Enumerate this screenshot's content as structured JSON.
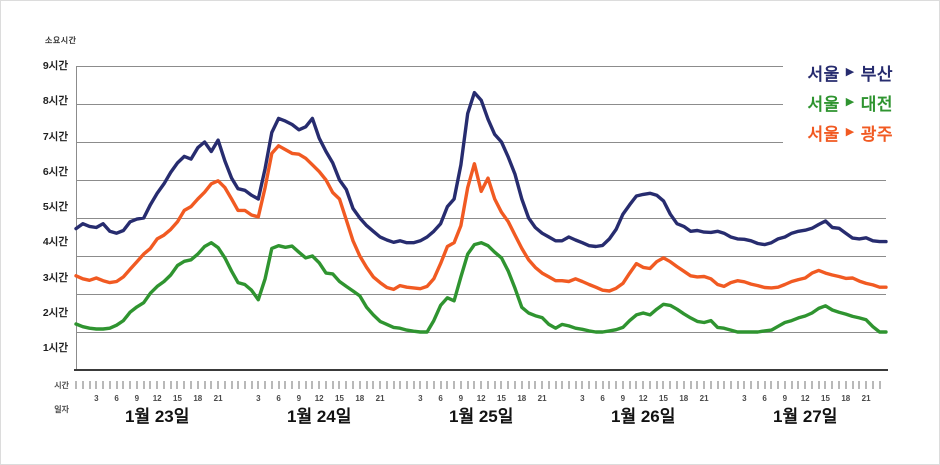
{
  "y_axis_title": "소요시간",
  "y_axis": {
    "labels": [
      "9시간",
      "8시간",
      "7시간",
      "6시간",
      "5시간",
      "4시간",
      "3시간",
      "2시간",
      "1시간"
    ]
  },
  "x_axis": {
    "name_time": "시간",
    "name_date": "일자",
    "hour_labels": [
      "3",
      "6",
      "9",
      "12",
      "15",
      "18",
      "21"
    ],
    "hours_per_day": 24,
    "days": [
      "1월 23일",
      "1월 24일",
      "1월 25일",
      "1월 26일",
      "1월 27일"
    ]
  },
  "legend": [
    {
      "from": "서울",
      "arrow": "▶",
      "to": "부산",
      "color": "#272c6f"
    },
    {
      "from": "서울",
      "arrow": "▶",
      "to": "대전",
      "color": "#2f9430"
    },
    {
      "from": "서울",
      "arrow": "▶",
      "to": "광주",
      "color": "#f15a22"
    }
  ],
  "colors": {
    "gridline": "#8c8c8c",
    "axis": "#3a3a3a",
    "tick": "#b9b9b9"
  },
  "chart_data": {
    "type": "line",
    "title": "",
    "ylabel": "소요시간",
    "xlabel": "시간 / 일자",
    "ylim": [
      1,
      9
    ],
    "y_unit": "시간",
    "categories_days": [
      "1월 23일",
      "1월 24일",
      "1월 25일",
      "1월 26일",
      "1월 27일"
    ],
    "x_description": "hourly values, 24 per day over 5 days (120 points per series)",
    "legend_position": "top-right",
    "grid": "horizontal",
    "series": [
      {
        "name": "서울 ▶ 부산",
        "color": "#272c6f",
        "values": [
          4.72,
          4.85,
          4.78,
          4.75,
          4.85,
          4.65,
          4.6,
          4.67,
          4.9,
          4.97,
          5.0,
          5.35,
          5.65,
          5.9,
          6.2,
          6.45,
          6.62,
          6.55,
          6.85,
          7.0,
          6.75,
          7.05,
          6.5,
          6.05,
          5.77,
          5.73,
          5.6,
          5.5,
          6.3,
          7.25,
          7.62,
          7.55,
          7.46,
          7.32,
          7.4,
          7.62,
          7.1,
          6.75,
          6.45,
          6.0,
          5.75,
          5.25,
          5.0,
          4.8,
          4.65,
          4.5,
          4.42,
          4.36,
          4.4,
          4.35,
          4.35,
          4.4,
          4.5,
          4.65,
          4.85,
          5.3,
          5.5,
          6.4,
          7.75,
          8.3,
          8.1,
          7.6,
          7.2,
          7.0,
          6.6,
          6.15,
          5.5,
          5.0,
          4.75,
          4.6,
          4.5,
          4.4,
          4.4,
          4.5,
          4.42,
          4.35,
          4.27,
          4.25,
          4.28,
          4.45,
          4.7,
          5.1,
          5.35,
          5.58,
          5.62,
          5.65,
          5.6,
          5.45,
          5.1,
          4.85,
          4.78,
          4.65,
          4.67,
          4.63,
          4.62,
          4.65,
          4.6,
          4.5,
          4.45,
          4.44,
          4.4,
          4.33,
          4.3,
          4.35,
          4.45,
          4.5,
          4.6,
          4.65,
          4.68,
          4.73,
          4.83,
          4.92,
          4.75,
          4.73,
          4.6,
          4.47,
          4.45,
          4.48,
          4.4,
          4.38
        ]
      },
      {
        "name": "서울 ▶ 대전",
        "color": "#2f9430",
        "values": [
          2.21,
          2.14,
          2.1,
          2.08,
          2.08,
          2.1,
          2.18,
          2.3,
          2.52,
          2.66,
          2.77,
          3.02,
          3.2,
          3.33,
          3.5,
          3.75,
          3.86,
          3.9,
          4.05,
          4.25,
          4.35,
          4.22,
          3.95,
          3.6,
          3.3,
          3.25,
          3.1,
          2.85,
          3.4,
          4.2,
          4.27,
          4.23,
          4.26,
          4.1,
          3.95,
          4.0,
          3.82,
          3.55,
          3.53,
          3.33,
          3.2,
          3.08,
          2.95,
          2.65,
          2.45,
          2.28,
          2.2,
          2.12,
          2.1,
          2.05,
          2.02,
          2.0,
          2.0,
          2.3,
          2.7,
          2.9,
          2.82,
          3.45,
          4.05,
          4.3,
          4.35,
          4.27,
          4.1,
          3.95,
          3.6,
          3.15,
          2.65,
          2.5,
          2.43,
          2.38,
          2.2,
          2.1,
          2.2,
          2.16,
          2.1,
          2.07,
          2.03,
          2.0,
          2.0,
          2.03,
          2.06,
          2.12,
          2.3,
          2.45,
          2.5,
          2.45,
          2.6,
          2.73,
          2.7,
          2.6,
          2.48,
          2.37,
          2.28,
          2.25,
          2.3,
          2.12,
          2.1,
          2.05,
          2.0,
          2.0,
          2.0,
          2.0,
          2.03,
          2.05,
          2.15,
          2.25,
          2.3,
          2.37,
          2.42,
          2.5,
          2.62,
          2.69,
          2.58,
          2.52,
          2.47,
          2.41,
          2.37,
          2.32,
          2.14,
          2.0
        ]
      },
      {
        "name": "서울 ▶ 광주",
        "color": "#f15a22",
        "values": [
          3.48,
          3.4,
          3.36,
          3.42,
          3.35,
          3.3,
          3.33,
          3.45,
          3.65,
          3.85,
          4.05,
          4.2,
          4.45,
          4.55,
          4.7,
          4.9,
          5.2,
          5.3,
          5.5,
          5.68,
          5.9,
          5.98,
          5.8,
          5.5,
          5.2,
          5.2,
          5.08,
          5.03,
          5.8,
          6.7,
          6.9,
          6.8,
          6.7,
          6.68,
          6.57,
          6.4,
          6.22,
          6.0,
          5.67,
          5.5,
          4.95,
          4.4,
          4.0,
          3.7,
          3.45,
          3.3,
          3.17,
          3.12,
          3.22,
          3.18,
          3.16,
          3.14,
          3.2,
          3.4,
          3.8,
          4.25,
          4.35,
          4.8,
          5.8,
          6.43,
          5.7,
          6.05,
          5.5,
          5.15,
          4.9,
          4.55,
          4.2,
          3.9,
          3.7,
          3.55,
          3.45,
          3.35,
          3.35,
          3.33,
          3.4,
          3.33,
          3.25,
          3.18,
          3.1,
          3.08,
          3.15,
          3.28,
          3.55,
          3.8,
          3.7,
          3.67,
          3.85,
          3.95,
          3.85,
          3.72,
          3.6,
          3.48,
          3.45,
          3.46,
          3.4,
          3.25,
          3.2,
          3.3,
          3.35,
          3.32,
          3.26,
          3.22,
          3.17,
          3.16,
          3.18,
          3.25,
          3.33,
          3.38,
          3.42,
          3.55,
          3.62,
          3.55,
          3.5,
          3.46,
          3.41,
          3.42,
          3.34,
          3.28,
          3.24,
          3.18
        ]
      }
    ]
  }
}
